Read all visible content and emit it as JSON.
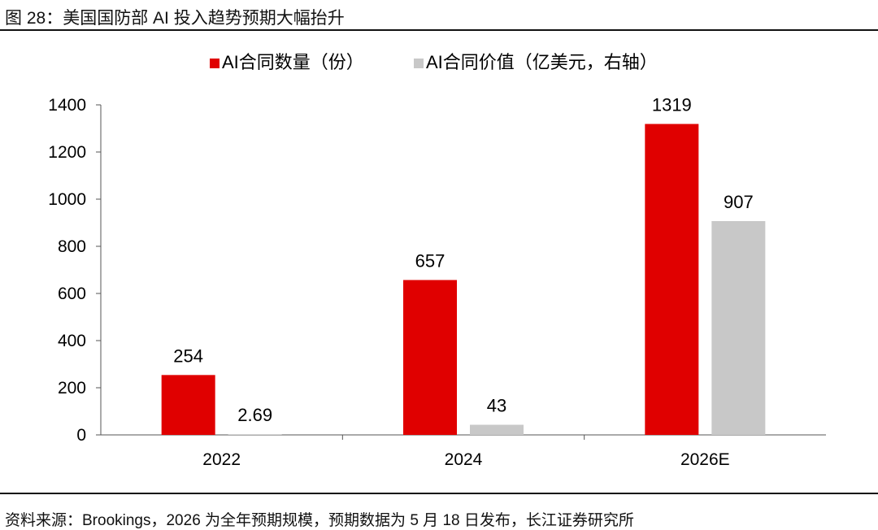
{
  "figure": {
    "title": "图 28：美国国防部 AI 投入趋势预期大幅抬升",
    "source": "资料来源：Brookings，2026 为全年预期规模，预期数据为 5 月 18 日发布，长江证券研究所"
  },
  "chart_data": {
    "type": "bar",
    "categories": [
      "2022",
      "2024",
      "2026E"
    ],
    "series": [
      {
        "name": "AI合同数量（份）",
        "values": [
          254,
          657,
          1319
        ],
        "labels": [
          "254",
          "657",
          "1319"
        ],
        "color": "#e00000"
      },
      {
        "name": "AI合同价值（亿美元，右轴）",
        "values": [
          2.69,
          43,
          907
        ],
        "labels": [
          "2.69",
          "43",
          "907"
        ],
        "color": "#c8c8c8"
      }
    ],
    "y_ticks": [
      "0",
      "200",
      "400",
      "600",
      "800",
      "1000",
      "1200",
      "1400"
    ],
    "ylim": [
      0,
      1400
    ],
    "legend_position": "top",
    "grid": false
  }
}
